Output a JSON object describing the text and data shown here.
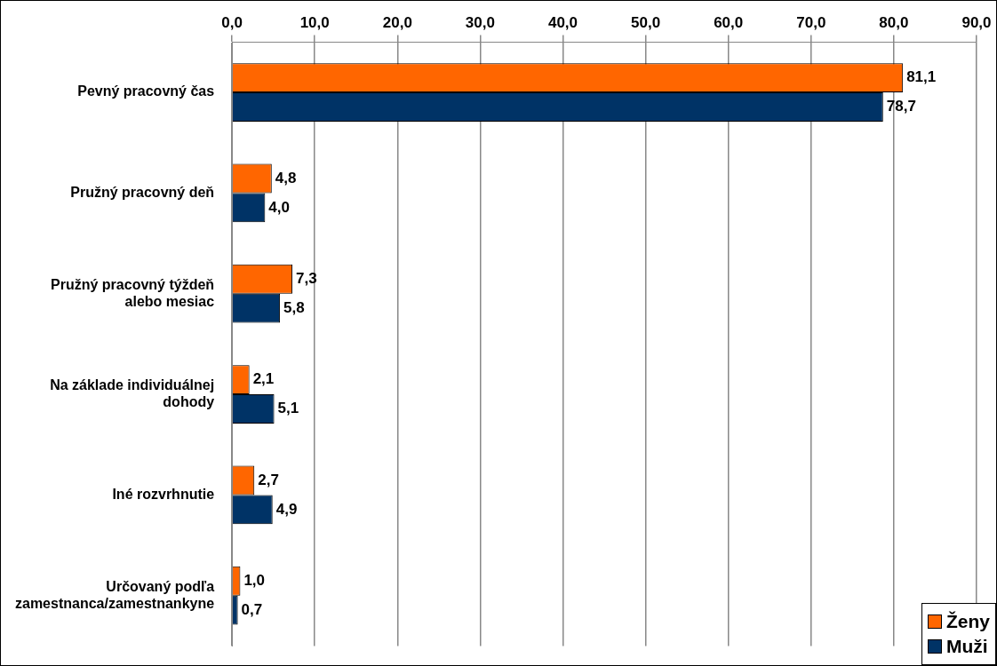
{
  "chart_data": {
    "type": "bar",
    "orientation": "horizontal",
    "categories": [
      "Pevný pracovný čas",
      "Pružný pracovný deň",
      "Pružný pracovný týždeň alebo mesiac",
      "Na základe individuálnej dohody",
      "Iné rozvrhnutie",
      "Určovaný podľa zamestnanca/zamestnankyne"
    ],
    "series": [
      {
        "name": "Ženy",
        "color": "#ff6600",
        "values": [
          81.1,
          4.8,
          7.3,
          2.1,
          2.7,
          1.0
        ],
        "value_labels": [
          "81,1",
          "4,8",
          "7,3",
          "2,1",
          "2,7",
          "1,0"
        ]
      },
      {
        "name": "Muži",
        "color": "#003366",
        "values": [
          78.7,
          4.0,
          5.8,
          5.1,
          4.9,
          0.7
        ],
        "value_labels": [
          "78,7",
          "4,0",
          "5,8",
          "5,1",
          "4,9",
          "0,7"
        ]
      }
    ],
    "xlim": [
      0,
      90
    ],
    "xticks": [
      {
        "value": 0,
        "label": "0,0"
      },
      {
        "value": 10,
        "label": "10,0"
      },
      {
        "value": 20,
        "label": "20,0"
      },
      {
        "value": 30,
        "label": "30,0"
      },
      {
        "value": 40,
        "label": "40,0"
      },
      {
        "value": 50,
        "label": "50,0"
      },
      {
        "value": 60,
        "label": "60,0"
      },
      {
        "value": 70,
        "label": "70,0"
      },
      {
        "value": 80,
        "label": "80,0"
      },
      {
        "value": 90,
        "label": "90,0"
      }
    ],
    "grid": "x",
    "legend": "bottom right"
  }
}
